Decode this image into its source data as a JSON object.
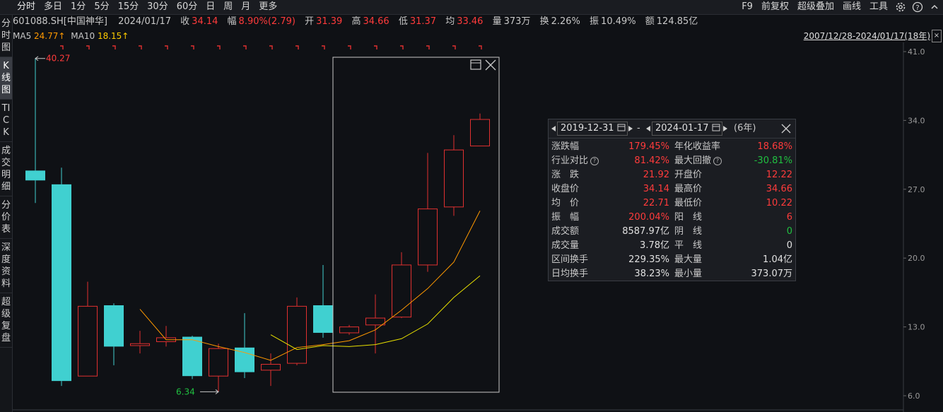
{
  "topbar": {
    "tabs": [
      "分时",
      "多日",
      "1分",
      "5分",
      "15分",
      "30分",
      "60分",
      "日",
      "周",
      "月",
      "更多"
    ],
    "right": [
      "F9",
      "前复权",
      "超级叠加",
      "画线",
      "工具"
    ]
  },
  "info": {
    "code": "601088.SH[中国神华]",
    "date": "2024/01/17",
    "close_label": "收",
    "close": "34.14",
    "chg_label": "幅",
    "chg": "8.90%(2.79)",
    "open_label": "开",
    "open": "31.39",
    "high_label": "高",
    "high": "34.66",
    "low_label": "低",
    "low": "31.37",
    "avg_label": "均",
    "avg": "33.46",
    "vol_label": "量",
    "vol": "373万",
    "turn_label": "换",
    "turn": "2.26%",
    "amp_label": "振",
    "amp": "10.49%",
    "amt_label": "额",
    "amt": "124.85亿"
  },
  "ma": {
    "ma5_label": "MA5",
    "ma5": "24.77↑",
    "ma10_label": "MA10",
    "ma10": "18.15↑"
  },
  "range_text": "2007/12/28-2024/01/17(18年)",
  "close_glyph": "×",
  "leftnav": [
    "分时图",
    "K线图",
    "TICK",
    "成交明细",
    "分价表",
    "深度资料",
    "超级复盘"
  ],
  "chart_data": {
    "type": "candlestick",
    "ylim": [
      6.0,
      41.0
    ],
    "yticks": [
      "41.0",
      "34.0",
      "27.0",
      "20.0",
      "13.0",
      "6.0"
    ],
    "candles": [
      {
        "o": 28.9,
        "c": 27.9,
        "h": 40.3,
        "l": 25.6
      },
      {
        "o": 27.5,
        "c": 7.5,
        "h": 29.2,
        "l": 7.0
      },
      {
        "o": 8.0,
        "c": 15.1,
        "h": 17.6,
        "l": 8.0
      },
      {
        "o": 15.2,
        "c": 11.0,
        "h": 15.4,
        "l": 9.1
      },
      {
        "o": 11.1,
        "c": 11.3,
        "h": 12.6,
        "l": 10.3
      },
      {
        "o": 11.5,
        "c": 11.9,
        "h": 13.1,
        "l": 11.0
      },
      {
        "o": 12.0,
        "c": 8.0,
        "h": 12.1,
        "l": 7.7
      },
      {
        "o": 8.0,
        "c": 10.8,
        "h": 11.3,
        "l": 6.4
      },
      {
        "o": 10.9,
        "c": 8.4,
        "h": 14.4,
        "l": 7.8
      },
      {
        "o": 8.6,
        "c": 9.2,
        "h": 10.3,
        "l": 7.0
      },
      {
        "o": 9.3,
        "c": 15.1,
        "h": 16.0,
        "l": 9.1
      },
      {
        "o": 15.2,
        "c": 12.4,
        "h": 19.3,
        "l": 11.9
      },
      {
        "o": 12.4,
        "c": 13.0,
        "h": 13.2,
        "l": 12.2
      },
      {
        "o": 13.2,
        "c": 13.9,
        "h": 16.3,
        "l": 10.3
      },
      {
        "o": 14.0,
        "c": 19.3,
        "h": 20.6,
        "l": 13.9
      },
      {
        "o": 19.3,
        "c": 25.0,
        "h": 30.7,
        "l": 18.6
      },
      {
        "o": 25.2,
        "c": 31.0,
        "h": 32.5,
        "l": 24.3
      },
      {
        "o": 31.4,
        "c": 34.1,
        "h": 34.7,
        "l": 31.4
      }
    ],
    "ma5": [
      null,
      null,
      null,
      null,
      14.8,
      11.7,
      11.7,
      11.0,
      10.4,
      9.6,
      10.9,
      11.2,
      11.6,
      12.7,
      14.7,
      16.9,
      19.6,
      24.8
    ],
    "ma10": [
      null,
      null,
      null,
      null,
      null,
      null,
      null,
      null,
      null,
      12.2,
      10.7,
      11.1,
      11.0,
      11.2,
      11.8,
      13.3,
      16.0,
      18.2
    ],
    "annotations": {
      "high": "40.27",
      "low": "6.34"
    },
    "colors": {
      "up": "#e03030",
      "down": "#40d0d0",
      "ma5": "#ff9900",
      "ma10": "#e8e000"
    }
  },
  "stats": {
    "date_from": "2019-12-31",
    "date_to": "2024-01-17",
    "dash": "-",
    "years": "(6年)",
    "rows": [
      {
        "l1": "涨跌幅",
        "v1": "179.45%",
        "c1": "red",
        "l2": "年化收益率",
        "v2": "18.68%",
        "c2": "red"
      },
      {
        "l1": "行业对比",
        "q1": true,
        "v1": "81.42%",
        "c1": "red",
        "l2": "最大回撤",
        "q2": true,
        "v2": "-30.81%",
        "c2": "green"
      },
      {
        "l1": "涨　跌",
        "v1": "21.92",
        "c1": "red",
        "l2": "开盘价",
        "v2": "12.22",
        "c2": "red"
      },
      {
        "l1": "收盘价",
        "v1": "34.14",
        "c1": "red",
        "l2": "最高价",
        "v2": "34.66",
        "c2": "red"
      },
      {
        "l1": "均　价",
        "v1": "22.71",
        "c1": "red",
        "l2": "最低价",
        "v2": "10.22",
        "c2": "red"
      },
      {
        "l1": "振　幅",
        "v1": "200.04%",
        "c1": "red",
        "l2": "阳　线",
        "v2": "6",
        "c2": "red"
      },
      {
        "l1": "成交额",
        "v1": "8587.97亿",
        "c1": "white",
        "l2": "阴　线",
        "v2": "0",
        "c2": "green"
      },
      {
        "l1": "成交量",
        "v1": "3.78亿",
        "c1": "white",
        "l2": "平　线",
        "v2": "0",
        "c2": "white"
      },
      {
        "l1": "区间换手",
        "v1": "229.35%",
        "c1": "white",
        "l2": "最大量",
        "v2": "1.04亿",
        "c2": "white"
      },
      {
        "l1": "日均换手",
        "v1": "38.23%",
        "c1": "white",
        "l2": "最小量",
        "v2": "373.07万",
        "c2": "white"
      }
    ]
  }
}
